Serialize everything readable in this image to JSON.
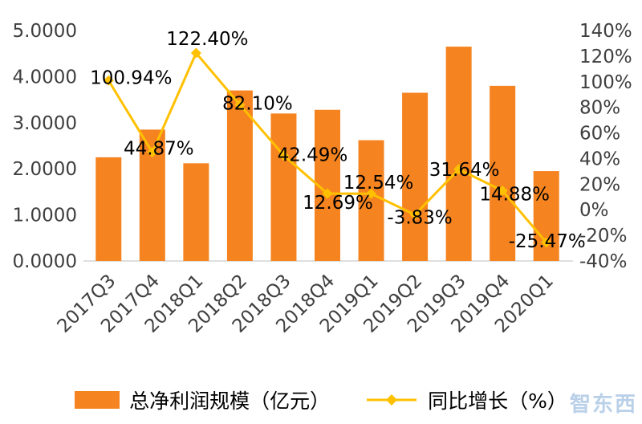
{
  "chart_data": {
    "type": "combo-bar-line",
    "title": "",
    "categories": [
      "2017Q3",
      "2017Q4",
      "2018Q1",
      "2018Q2",
      "2018Q3",
      "2018Q4",
      "2019Q1",
      "2019Q2",
      "2019Q3",
      "2019Q4",
      "2020Q1"
    ],
    "series": [
      {
        "name": "总净利润规模（亿元）",
        "type": "bar",
        "axis": "left",
        "color": "#F5831F",
        "values": [
          2.25,
          2.85,
          2.12,
          3.7,
          3.2,
          3.28,
          2.62,
          3.65,
          4.65,
          3.8,
          1.95
        ]
      },
      {
        "name": "同比增长（%）",
        "type": "line",
        "axis": "right",
        "color": "#FFC000",
        "values": [
          100.94,
          44.87,
          122.4,
          82.1,
          42.49,
          12.69,
          12.54,
          -3.83,
          31.64,
          14.88,
          -25.47
        ],
        "data_labels": [
          "100.94%",
          "44.87%",
          "122.40%",
          "82.10%",
          "42.49%",
          "12.69%",
          "12.54%",
          "-3.83%",
          "31.64%",
          "14.88%",
          "-25.47%"
        ],
        "label_offsets": [
          [
            28,
            4
          ],
          [
            8,
            3
          ],
          [
            14,
            -10
          ],
          [
            22,
            6
          ],
          [
            36,
            7
          ],
          [
            13,
            19
          ],
          [
            9,
            -6
          ],
          [
            6,
            11
          ],
          [
            7,
            8
          ],
          [
            15,
            12
          ],
          [
            1,
            6
          ]
        ]
      }
    ],
    "left_axis": {
      "min": 0,
      "max": 5,
      "tick_values": [
        0,
        1,
        2,
        3,
        4,
        5
      ],
      "tick_labels": [
        "0.0000",
        "1.0000",
        "2.0000",
        "3.0000",
        "4.0000",
        "5.0000"
      ]
    },
    "right_axis": {
      "min": -40,
      "max": 140,
      "tick_values": [
        -40,
        -20,
        0,
        20,
        40,
        60,
        80,
        100,
        120,
        140
      ],
      "tick_labels": [
        "-40%",
        "-20%",
        "0%",
        "20%",
        "40%",
        "60%",
        "80%",
        "100%",
        "120%",
        "140%"
      ]
    },
    "grid": false,
    "legend_position": "bottom",
    "axis_line_color": "#BFBFBF"
  },
  "watermark": {
    "text": "智东西"
  }
}
